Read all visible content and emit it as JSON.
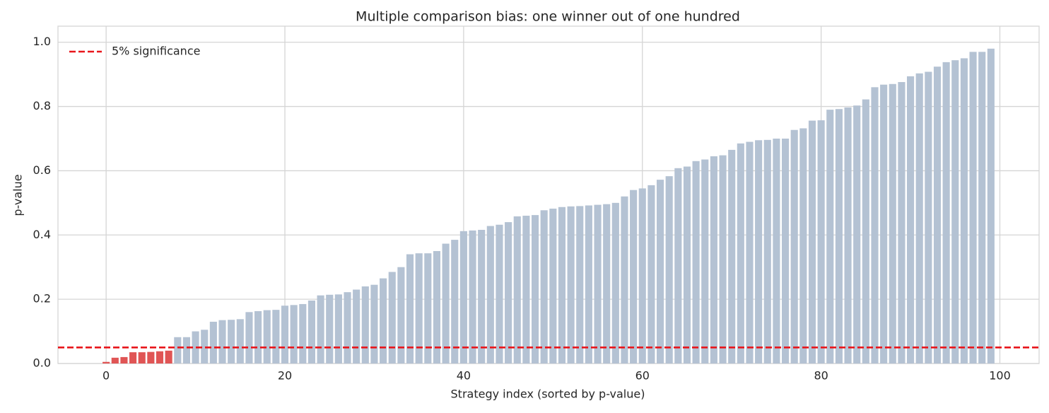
{
  "chart_data": {
    "type": "bar",
    "title": "Multiple comparison bias: one winner out of one hundred",
    "xlabel": "Strategy index (sorted by p-value)",
    "ylabel": "p-value",
    "x": [
      0,
      1,
      2,
      3,
      4,
      5,
      6,
      7,
      8,
      9,
      10,
      11,
      12,
      13,
      14,
      15,
      16,
      17,
      18,
      19,
      20,
      21,
      22,
      23,
      24,
      25,
      26,
      27,
      28,
      29,
      30,
      31,
      32,
      33,
      34,
      35,
      36,
      37,
      38,
      39,
      40,
      41,
      42,
      43,
      44,
      45,
      46,
      47,
      48,
      49,
      50,
      51,
      52,
      53,
      54,
      55,
      56,
      57,
      58,
      59,
      60,
      61,
      62,
      63,
      64,
      65,
      66,
      67,
      68,
      69,
      70,
      71,
      72,
      73,
      74,
      75,
      76,
      77,
      78,
      79,
      80,
      81,
      82,
      83,
      84,
      85,
      86,
      87,
      88,
      89,
      90,
      91,
      92,
      93,
      94,
      95,
      96,
      97,
      98,
      99
    ],
    "values": [
      0.005,
      0.018,
      0.02,
      0.035,
      0.035,
      0.036,
      0.038,
      0.04,
      0.082,
      0.082,
      0.1,
      0.105,
      0.13,
      0.135,
      0.136,
      0.138,
      0.16,
      0.163,
      0.166,
      0.167,
      0.18,
      0.182,
      0.185,
      0.196,
      0.212,
      0.214,
      0.215,
      0.222,
      0.23,
      0.24,
      0.245,
      0.265,
      0.285,
      0.3,
      0.34,
      0.343,
      0.343,
      0.35,
      0.373,
      0.385,
      0.412,
      0.414,
      0.416,
      0.428,
      0.432,
      0.44,
      0.458,
      0.46,
      0.462,
      0.477,
      0.482,
      0.487,
      0.489,
      0.49,
      0.492,
      0.494,
      0.496,
      0.5,
      0.52,
      0.54,
      0.545,
      0.555,
      0.572,
      0.583,
      0.608,
      0.613,
      0.63,
      0.635,
      0.645,
      0.648,
      0.665,
      0.685,
      0.69,
      0.695,
      0.696,
      0.7,
      0.7,
      0.727,
      0.732,
      0.756,
      0.757,
      0.79,
      0.792,
      0.797,
      0.803,
      0.822,
      0.86,
      0.868,
      0.87,
      0.876,
      0.894,
      0.903,
      0.908,
      0.924,
      0.938,
      0.944,
      0.95,
      0.97,
      0.97,
      0.98
    ],
    "color": "#b4c2d3",
    "highlight_color": "#e05555",
    "hline": {
      "value": 0.05,
      "label": "5% significance",
      "color": "#e8161b"
    },
    "xlim": [
      -5.39,
      104.39
    ],
    "xticks": [
      0,
      20,
      40,
      60,
      80,
      100
    ],
    "ylim": [
      0,
      1.05
    ],
    "yticks": [
      {
        "value": 0,
        "label": "0.0"
      },
      0.2,
      0.4,
      0.6,
      0.8,
      {
        "value": 1,
        "label": "1.0"
      }
    ],
    "grid": true,
    "legend": "upper left"
  }
}
